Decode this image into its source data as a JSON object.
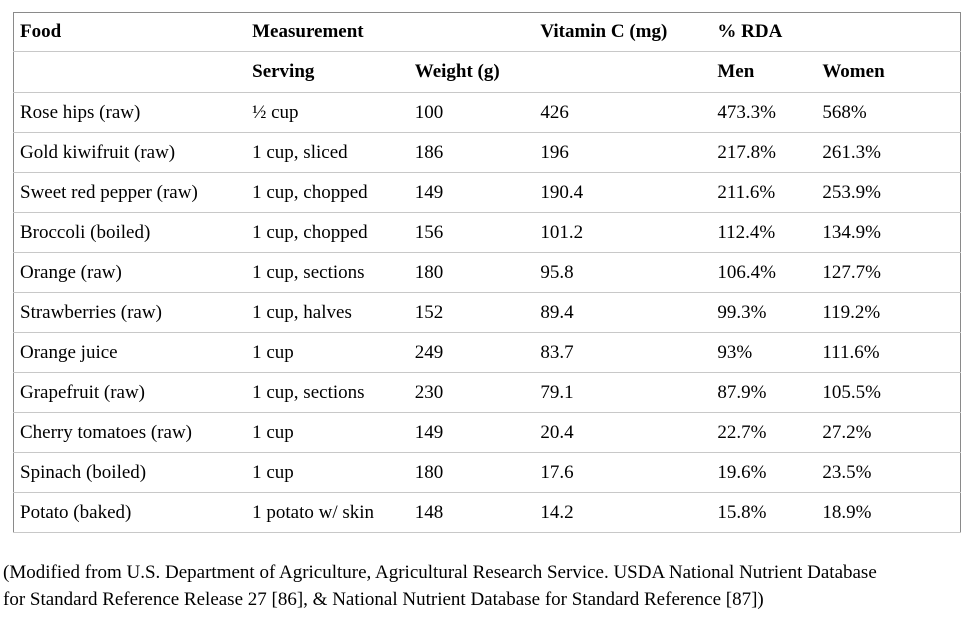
{
  "table": {
    "headers_row1": [
      "Food",
      "Measurement",
      "",
      "Vitamin C (mg)",
      "% RDA",
      ""
    ],
    "headers_row2": [
      "",
      "Serving",
      "Weight (g)",
      "",
      "Men",
      "Women"
    ],
    "rows": [
      [
        "Rose hips (raw)",
        "½ cup",
        "100",
        "426",
        "473.3%",
        "568%"
      ],
      [
        "Gold kiwifruit (raw)",
        "1 cup, sliced",
        "186",
        "196",
        "217.8%",
        "261.3%"
      ],
      [
        "Sweet red pepper (raw)",
        "1 cup, chopped",
        "149",
        "190.4",
        "211.6%",
        "253.9%"
      ],
      [
        "Broccoli (boiled)",
        "1 cup, chopped",
        "156",
        "101.2",
        "112.4%",
        "134.9%"
      ],
      [
        "Orange (raw)",
        "1 cup, sections",
        "180",
        "95.8",
        "106.4%",
        "127.7%"
      ],
      [
        "Strawberries (raw)",
        "1 cup, halves",
        "152",
        "89.4",
        "99.3%",
        "119.2%"
      ],
      [
        "Orange juice",
        "1 cup",
        "249",
        "83.7",
        "93%",
        "111.6%"
      ],
      [
        "Grapefruit (raw)",
        "1 cup, sections",
        "230",
        "79.1",
        "87.9%",
        "105.5%"
      ],
      [
        "Cherry tomatoes (raw)",
        "1 cup",
        "149",
        "20.4",
        "22.7%",
        "27.2%"
      ],
      [
        "Spinach (boiled)",
        "1 cup",
        "180",
        "17.6",
        "19.6%",
        "23.5%"
      ],
      [
        "Potato (baked)",
        "1 potato w/ skin",
        "148",
        "14.2",
        "15.8%",
        "18.9%"
      ]
    ]
  },
  "footnote": {
    "line1": "(Modified from U.S. Department of Agriculture, Agricultural Research Service. USDA National Nutrient Database",
    "line2": "for Standard Reference Release 27 [86], & National Nutrient Database for Standard Reference [87])"
  }
}
